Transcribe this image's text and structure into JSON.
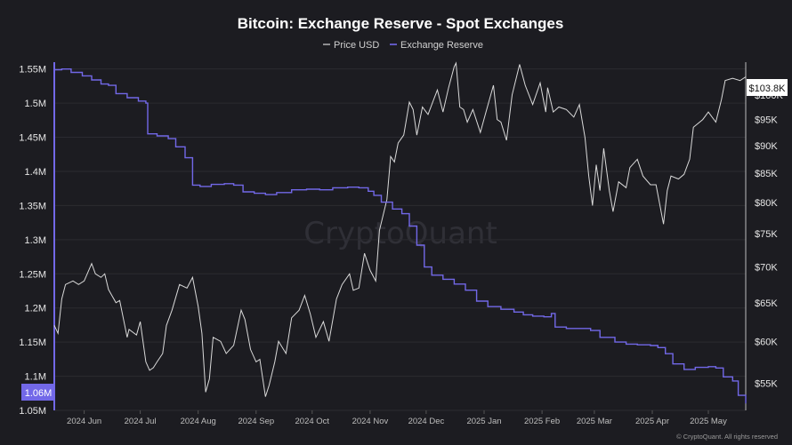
{
  "chart_data": {
    "type": "line",
    "title": "Bitcoin: Exchange Reserve - Spot Exchanges",
    "legend": {
      "placement": "top-center",
      "items": [
        "Price USD",
        "Exchange Reserve"
      ]
    },
    "grid": "horizontal",
    "x_axis": {
      "range": [
        "2024-05-16",
        "2025-05-21"
      ],
      "ticks": [
        {
          "label": "2024 Jun",
          "date": "2024-06-01"
        },
        {
          "label": "2024 Jul",
          "date": "2024-07-01"
        },
        {
          "label": "2024 Aug",
          "date": "2024-08-01"
        },
        {
          "label": "2024 Sep",
          "date": "2024-09-01"
        },
        {
          "label": "2024 Oct",
          "date": "2024-10-01"
        },
        {
          "label": "2024 Nov",
          "date": "2024-11-01"
        },
        {
          "label": "2024 Dec",
          "date": "2024-12-01"
        },
        {
          "label": "2025 Jan",
          "date": "2025-01-01"
        },
        {
          "label": "2025 Feb",
          "date": "2025-02-01"
        },
        {
          "label": "2025 Mar",
          "date": "2025-03-01"
        },
        {
          "label": "2025 Apr",
          "date": "2025-04-01"
        },
        {
          "label": "2025 May",
          "date": "2025-05-01"
        }
      ]
    },
    "y_left": {
      "range": [
        1050000,
        1560000
      ],
      "ticks": [
        {
          "label": "1.55M",
          "value": 1550000
        },
        {
          "label": "1.5M",
          "value": 1500000
        },
        {
          "label": "1.45M",
          "value": 1450000
        },
        {
          "label": "1.4M",
          "value": 1400000
        },
        {
          "label": "1.35M",
          "value": 1350000
        },
        {
          "label": "1.3M",
          "value": 1300000
        },
        {
          "label": "1.25M",
          "value": 1250000
        },
        {
          "label": "1.2M",
          "value": 1200000
        },
        {
          "label": "1.15M",
          "value": 1150000
        },
        {
          "label": "1.1M",
          "value": 1100000
        },
        {
          "label": "1.05M",
          "value": 1050000
        }
      ]
    },
    "y_right": {
      "scale": "log",
      "range": [
        52000,
        107000
      ],
      "ticks": [
        {
          "label": "$100K",
          "value": 100000
        },
        {
          "label": "$95K",
          "value": 95000
        },
        {
          "label": "$90K",
          "value": 90000
        },
        {
          "label": "$85K",
          "value": 85000
        },
        {
          "label": "$80K",
          "value": 80000
        },
        {
          "label": "$75K",
          "value": 75000
        },
        {
          "label": "$70K",
          "value": 70000
        },
        {
          "label": "$65K",
          "value": 65000
        },
        {
          "label": "$60K",
          "value": 60000
        },
        {
          "label": "$55K",
          "value": 55000
        }
      ]
    },
    "last_value_badges": {
      "left": "1.06M",
      "right": "$103.8K"
    },
    "series": [
      {
        "name": "Price USD",
        "axis": "right",
        "color": "#d9d9d9",
        "points": [
          [
            "2024-05-16",
            62000
          ],
          [
            "2024-05-18",
            61000
          ],
          [
            "2024-05-20",
            65500
          ],
          [
            "2024-05-22",
            67500
          ],
          [
            "2024-05-26",
            68000
          ],
          [
            "2024-05-29",
            67500
          ],
          [
            "2024-06-01",
            68000
          ],
          [
            "2024-06-05",
            70500
          ],
          [
            "2024-06-07",
            69000
          ],
          [
            "2024-06-10",
            68500
          ],
          [
            "2024-06-12",
            69000
          ],
          [
            "2024-06-14",
            66800
          ],
          [
            "2024-06-18",
            65000
          ],
          [
            "2024-06-20",
            65300
          ],
          [
            "2024-06-24",
            60500
          ],
          [
            "2024-06-25",
            61500
          ],
          [
            "2024-06-29",
            60800
          ],
          [
            "2024-07-01",
            62500
          ],
          [
            "2024-07-04",
            57500
          ],
          [
            "2024-07-06",
            56500
          ],
          [
            "2024-07-08",
            56800
          ],
          [
            "2024-07-10",
            57500
          ],
          [
            "2024-07-13",
            58500
          ],
          [
            "2024-07-15",
            62000
          ],
          [
            "2024-07-18",
            64000
          ],
          [
            "2024-07-22",
            67500
          ],
          [
            "2024-07-26",
            67000
          ],
          [
            "2024-07-29",
            68500
          ],
          [
            "2024-08-01",
            64500
          ],
          [
            "2024-08-03",
            61000
          ],
          [
            "2024-08-05",
            54000
          ],
          [
            "2024-08-07",
            55500
          ],
          [
            "2024-08-09",
            60500
          ],
          [
            "2024-08-13",
            60000
          ],
          [
            "2024-08-16",
            58500
          ],
          [
            "2024-08-20",
            59500
          ],
          [
            "2024-08-24",
            64000
          ],
          [
            "2024-08-26",
            62800
          ],
          [
            "2024-08-29",
            59000
          ],
          [
            "2024-09-01",
            57500
          ],
          [
            "2024-09-03",
            57800
          ],
          [
            "2024-09-06",
            53500
          ],
          [
            "2024-09-08",
            54800
          ],
          [
            "2024-09-11",
            57500
          ],
          [
            "2024-09-13",
            60000
          ],
          [
            "2024-09-17",
            58500
          ],
          [
            "2024-09-20",
            63000
          ],
          [
            "2024-09-24",
            64000
          ],
          [
            "2024-09-27",
            66000
          ],
          [
            "2024-09-30",
            63500
          ],
          [
            "2024-10-03",
            60500
          ],
          [
            "2024-10-07",
            62500
          ],
          [
            "2024-10-10",
            60000
          ],
          [
            "2024-10-14",
            65500
          ],
          [
            "2024-10-17",
            67500
          ],
          [
            "2024-10-21",
            69000
          ],
          [
            "2024-10-23",
            66700
          ],
          [
            "2024-10-26",
            67000
          ],
          [
            "2024-10-29",
            72000
          ],
          [
            "2024-11-01",
            69500
          ],
          [
            "2024-11-04",
            68000
          ],
          [
            "2024-11-06",
            75500
          ],
          [
            "2024-11-10",
            80500
          ],
          [
            "2024-11-12",
            88000
          ],
          [
            "2024-11-14",
            87000
          ],
          [
            "2024-11-16",
            90500
          ],
          [
            "2024-11-19",
            92000
          ],
          [
            "2024-11-22",
            98500
          ],
          [
            "2024-11-24",
            97000
          ],
          [
            "2024-11-26",
            92000
          ],
          [
            "2024-11-29",
            97500
          ],
          [
            "2024-12-02",
            96000
          ],
          [
            "2024-12-05",
            99000
          ],
          [
            "2024-12-07",
            101000
          ],
          [
            "2024-12-10",
            96500
          ],
          [
            "2024-12-13",
            101500
          ],
          [
            "2024-12-16",
            106000
          ],
          [
            "2024-12-17",
            106800
          ],
          [
            "2024-12-19",
            97500
          ],
          [
            "2024-12-21",
            97000
          ],
          [
            "2024-12-23",
            94500
          ],
          [
            "2024-12-26",
            97000
          ],
          [
            "2024-12-30",
            92500
          ],
          [
            "2025-01-02",
            96500
          ],
          [
            "2025-01-06",
            102000
          ],
          [
            "2025-01-08",
            95000
          ],
          [
            "2025-01-10",
            94500
          ],
          [
            "2025-01-13",
            91000
          ],
          [
            "2025-01-16",
            100000
          ],
          [
            "2025-01-20",
            106500
          ],
          [
            "2025-01-23",
            102000
          ],
          [
            "2025-01-27",
            98000
          ],
          [
            "2025-01-31",
            102500
          ],
          [
            "2025-02-03",
            96500
          ],
          [
            "2025-02-04",
            101500
          ],
          [
            "2025-02-07",
            96500
          ],
          [
            "2025-02-10",
            97500
          ],
          [
            "2025-02-14",
            97000
          ],
          [
            "2025-02-18",
            95500
          ],
          [
            "2025-02-21",
            98000
          ],
          [
            "2025-02-24",
            91500
          ],
          [
            "2025-02-26",
            84500
          ],
          [
            "2025-02-28",
            79500
          ],
          [
            "2025-03-02",
            86500
          ],
          [
            "2025-03-04",
            82000
          ],
          [
            "2025-03-06",
            89500
          ],
          [
            "2025-03-09",
            82000
          ],
          [
            "2025-03-11",
            78500
          ],
          [
            "2025-03-14",
            83500
          ],
          [
            "2025-03-18",
            82500
          ],
          [
            "2025-03-20",
            86000
          ],
          [
            "2025-03-24",
            87500
          ],
          [
            "2025-03-27",
            84500
          ],
          [
            "2025-03-31",
            83000
          ],
          [
            "2025-04-03",
            83000
          ],
          [
            "2025-04-07",
            76500
          ],
          [
            "2025-04-09",
            82000
          ],
          [
            "2025-04-11",
            84500
          ],
          [
            "2025-04-15",
            84000
          ],
          [
            "2025-04-18",
            84800
          ],
          [
            "2025-04-21",
            87500
          ],
          [
            "2025-04-23",
            93500
          ],
          [
            "2025-04-28",
            95000
          ],
          [
            "2025-05-01",
            96500
          ],
          [
            "2025-05-05",
            94500
          ],
          [
            "2025-05-08",
            99000
          ],
          [
            "2025-05-10",
            103000
          ],
          [
            "2025-05-14",
            103500
          ],
          [
            "2025-05-18",
            103000
          ],
          [
            "2025-05-21",
            103800
          ]
        ]
      },
      {
        "name": "Exchange Reserve",
        "axis": "left",
        "color": "#7268e8",
        "points": [
          [
            "2024-05-16",
            1549000
          ],
          [
            "2024-05-20",
            1550000
          ],
          [
            "2024-05-25",
            1545000
          ],
          [
            "2024-05-31",
            1540000
          ],
          [
            "2024-06-05",
            1534000
          ],
          [
            "2024-06-10",
            1528000
          ],
          [
            "2024-06-14",
            1526000
          ],
          [
            "2024-06-18",
            1514000
          ],
          [
            "2024-06-24",
            1508000
          ],
          [
            "2024-06-30",
            1503000
          ],
          [
            "2024-07-04",
            1500000
          ],
          [
            "2024-07-05",
            1455000
          ],
          [
            "2024-07-10",
            1452000
          ],
          [
            "2024-07-16",
            1448000
          ],
          [
            "2024-07-20",
            1436000
          ],
          [
            "2024-07-25",
            1420000
          ],
          [
            "2024-07-29",
            1380000
          ],
          [
            "2024-08-02",
            1378000
          ],
          [
            "2024-08-08",
            1381000
          ],
          [
            "2024-08-15",
            1382000
          ],
          [
            "2024-08-20",
            1380000
          ],
          [
            "2024-08-25",
            1370000
          ],
          [
            "2024-08-31",
            1368000
          ],
          [
            "2024-09-06",
            1366000
          ],
          [
            "2024-09-12",
            1369000
          ],
          [
            "2024-09-20",
            1373000
          ],
          [
            "2024-09-28",
            1374000
          ],
          [
            "2024-10-05",
            1373000
          ],
          [
            "2024-10-12",
            1376000
          ],
          [
            "2024-10-20",
            1377000
          ],
          [
            "2024-10-26",
            1376000
          ],
          [
            "2024-10-31",
            1371000
          ],
          [
            "2024-11-03",
            1365000
          ],
          [
            "2024-11-07",
            1355000
          ],
          [
            "2024-11-13",
            1345000
          ],
          [
            "2024-11-18",
            1338000
          ],
          [
            "2024-11-22",
            1320000
          ],
          [
            "2024-11-26",
            1292000
          ],
          [
            "2024-11-30",
            1260000
          ],
          [
            "2024-12-04",
            1248000
          ],
          [
            "2024-12-10",
            1242000
          ],
          [
            "2024-12-16",
            1235000
          ],
          [
            "2024-12-22",
            1226000
          ],
          [
            "2024-12-28",
            1210000
          ],
          [
            "2025-01-03",
            1202000
          ],
          [
            "2025-01-10",
            1198000
          ],
          [
            "2025-01-17",
            1194000
          ],
          [
            "2025-01-22",
            1190000
          ],
          [
            "2025-01-27",
            1188000
          ],
          [
            "2025-02-02",
            1187000
          ],
          [
            "2025-02-06",
            1192000
          ],
          [
            "2025-02-08",
            1172000
          ],
          [
            "2025-02-14",
            1170000
          ],
          [
            "2025-02-21",
            1170000
          ],
          [
            "2025-02-27",
            1167000
          ],
          [
            "2025-03-04",
            1157000
          ],
          [
            "2025-03-12",
            1150000
          ],
          [
            "2025-03-18",
            1147000
          ],
          [
            "2025-03-24",
            1146000
          ],
          [
            "2025-03-31",
            1145000
          ],
          [
            "2025-04-04",
            1142000
          ],
          [
            "2025-04-08",
            1133000
          ],
          [
            "2025-04-12",
            1118000
          ],
          [
            "2025-04-18",
            1110000
          ],
          [
            "2025-04-24",
            1113000
          ],
          [
            "2025-05-01",
            1114000
          ],
          [
            "2025-05-05",
            1112000
          ],
          [
            "2025-05-09",
            1099000
          ],
          [
            "2025-05-14",
            1093000
          ],
          [
            "2025-05-17",
            1072000
          ],
          [
            "2025-05-21",
            1060000
          ]
        ]
      }
    ],
    "watermark": "CryptoQuant",
    "footer": "© CryptoQuant. All rights reserved"
  }
}
